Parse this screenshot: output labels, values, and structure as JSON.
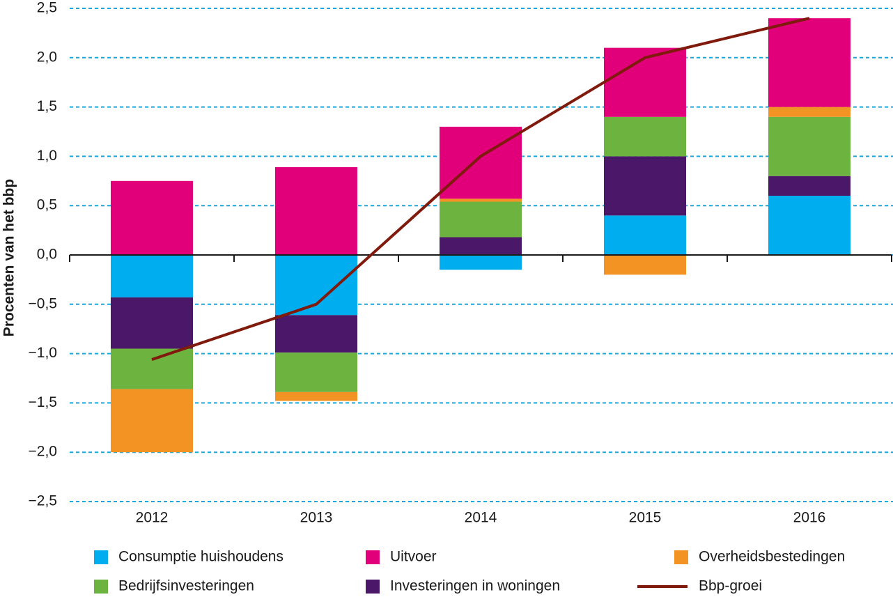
{
  "chart_data": {
    "type": "bar",
    "stacked": true,
    "y_label": "Procenten van het bbp",
    "categories": [
      "2012",
      "2013",
      "2014",
      "2015",
      "2016"
    ],
    "series": [
      {
        "name": "Consumptie huishoudens",
        "color": "#00aeef",
        "values": [
          -0.43,
          -0.61,
          -0.15,
          0.4,
          0.6
        ]
      },
      {
        "name": "Investeringen in woningen",
        "color": "#4b1869",
        "values": [
          -0.52,
          -0.38,
          0.18,
          0.6,
          0.2
        ]
      },
      {
        "name": "Bedrijfsinvesteringen",
        "color": "#6db33f",
        "values": [
          -0.41,
          -0.4,
          0.36,
          0.4,
          0.6
        ]
      },
      {
        "name": "Overheidsbestedingen",
        "color": "#f39323",
        "values": [
          -0.64,
          -0.09,
          0.03,
          -0.2,
          0.1
        ]
      },
      {
        "name": "Uitvoer",
        "color": "#e2007a",
        "values": [
          0.75,
          0.89,
          0.73,
          0.7,
          0.9
        ]
      },
      {
        "name": "Bbp-groei",
        "color": "#7f1a0c",
        "type": "line",
        "values": [
          -1.06,
          -0.5,
          1.0,
          2.0,
          2.4
        ]
      }
    ],
    "ylim": [
      -2.5,
      2.5
    ],
    "yticks": [
      {
        "value": -2.5,
        "label": "−2,5"
      },
      {
        "value": -2,
        "label": "−2,0"
      },
      {
        "value": -1.5,
        "label": "−1,5"
      },
      {
        "value": -1,
        "label": "−1,0"
      },
      {
        "value": -0.5,
        "label": "−0,5"
      },
      {
        "value": 0,
        "label": "0,0"
      },
      {
        "value": 0.5,
        "label": "0,5"
      },
      {
        "value": 1,
        "label": "1,0"
      },
      {
        "value": 1.5,
        "label": "1,5"
      },
      {
        "value": 2,
        "label": "2,0"
      },
      {
        "value": 2.5,
        "label": "2,5"
      }
    ],
    "grid": true
  }
}
